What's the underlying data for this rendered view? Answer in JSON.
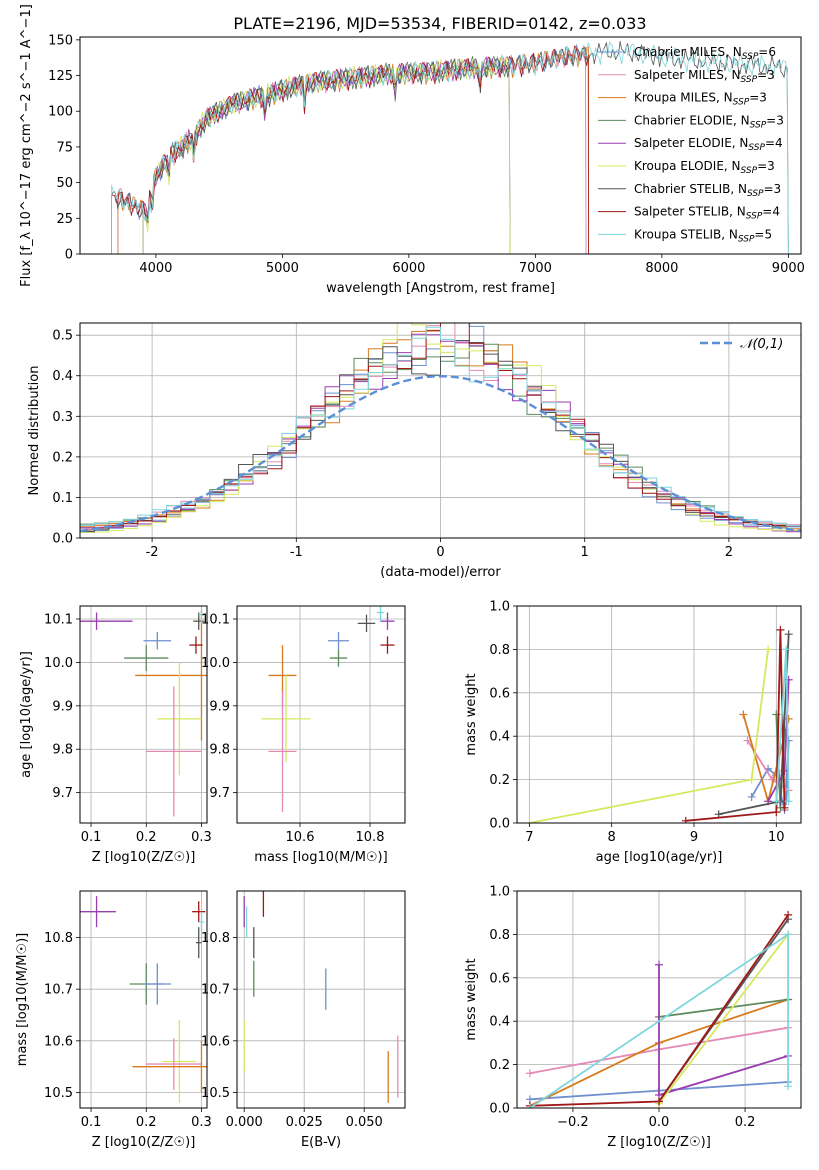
{
  "figure": {
    "title": "PLATE=2196, MJD=53534, FIBERID=0142, z=0.033"
  },
  "palette": {
    "Chabrier MILES": "#6f8fcf",
    "Salpeter MILES": "#e48ab4",
    "Kroupa MILES": "#d97a1e",
    "Chabrier ELODIE": "#5d8a5d",
    "Salpeter ELODIE": "#9a3db0",
    "Kroupa ELODIE": "#d6e85e",
    "Chabrier STELIB": "#555555",
    "Salpeter STELIB": "#a01818",
    "Kroupa STELIB": "#7fd6dc"
  },
  "chart_data": [
    {
      "id": "spectrum",
      "type": "line",
      "title": "PLATE=2196, MJD=53534, FIBERID=0142, z=0.033",
      "xlabel": "wavelength [Angstrom, rest frame]",
      "ylabel": "Flux [f_λ 10^−17 erg cm^−2 s^−1 A^−1]",
      "xlim": [
        3400,
        9100
      ],
      "ylim": [
        0,
        152
      ],
      "xticks": [
        4000,
        5000,
        6000,
        7000,
        8000,
        9000
      ],
      "yticks": [
        0,
        25,
        50,
        75,
        100,
        125,
        150
      ],
      "grid": false,
      "legend_position": "upper-right",
      "series": [
        {
          "name": "Chabrier MILES",
          "nssp": "6"
        },
        {
          "name": "Salpeter MILES",
          "nssp": "3"
        },
        {
          "name": "Kroupa MILES",
          "nssp": "3"
        },
        {
          "name": "Chabrier ELODIE",
          "nssp": "3"
        },
        {
          "name": "Salpeter ELODIE",
          "nssp": "4"
        },
        {
          "name": "Kroupa ELODIE",
          "nssp": "3"
        },
        {
          "name": "Chabrier STELIB",
          "nssp": "3"
        },
        {
          "name": "Salpeter STELIB",
          "nssp": "4"
        },
        {
          "name": "Kroupa STELIB",
          "nssp": "5"
        }
      ],
      "continuum": [
        [
          3650,
          42
        ],
        [
          3800,
          35
        ],
        [
          3920,
          30
        ],
        [
          4000,
          55
        ],
        [
          4100,
          68
        ],
        [
          4200,
          75
        ],
        [
          4300,
          82
        ],
        [
          4400,
          95
        ],
        [
          4500,
          100
        ],
        [
          4600,
          105
        ],
        [
          4700,
          108
        ],
        [
          4800,
          110
        ],
        [
          4900,
          112
        ],
        [
          5000,
          115
        ],
        [
          5200,
          120
        ],
        [
          5400,
          122
        ],
        [
          5600,
          124
        ],
        [
          5800,
          126
        ],
        [
          6000,
          127
        ],
        [
          6200,
          128
        ],
        [
          6400,
          130
        ],
        [
          6600,
          131
        ],
        [
          6800,
          132
        ],
        [
          7000,
          134
        ],
        [
          7200,
          138
        ],
        [
          7400,
          140
        ],
        [
          7600,
          142
        ],
        [
          7800,
          141
        ],
        [
          8000,
          138
        ],
        [
          8200,
          136
        ],
        [
          8400,
          135
        ],
        [
          8600,
          133
        ],
        [
          8800,
          132
        ],
        [
          9000,
          130
        ]
      ],
      "absorption_lines": [
        3934,
        3969,
        4101,
        4300,
        4861,
        5175,
        5890,
        6563
      ],
      "wavelength_coverage": {
        "Chabrier MILES": [
          3700,
          7400
        ],
        "Salpeter MILES": [
          3700,
          7400
        ],
        "Kroupa MILES": [
          3700,
          7420
        ],
        "Chabrier ELODIE": [
          3900,
          6800
        ],
        "Salpeter ELODIE": [
          3900,
          6800
        ],
        "Kroupa ELODIE": [
          3900,
          6800
        ],
        "Chabrier STELIB": [
          3650,
          9000
        ],
        "Salpeter STELIB": [
          3650,
          7420
        ],
        "Kroupa STELIB": [
          3650,
          9000
        ]
      }
    },
    {
      "id": "residuals",
      "type": "histogram",
      "xlabel": "(data-model)/error",
      "ylabel": "Normed distribution",
      "xlim": [
        -2.5,
        2.5
      ],
      "ylim": [
        0,
        0.53
      ],
      "xticks": [
        -2,
        -1,
        0,
        1,
        2
      ],
      "yticks": [
        0.0,
        0.1,
        0.2,
        0.3,
        0.4,
        0.5
      ],
      "grid": true,
      "legend": "𝒩(0,1)",
      "legend_position": "upper-right",
      "bin_width": 0.1,
      "reference_curve": {
        "name": "𝒩(0,1)",
        "mu": 0,
        "sigma": 1,
        "style": "dashed",
        "color": "#5b8fd6"
      }
    },
    {
      "id": "age_vs_Z",
      "type": "scatter",
      "xlabel": "Z [log10(Z/Z☉)]",
      "ylabel": "age  [log10(age/yr)]",
      "xlim": [
        0.08,
        0.31
      ],
      "ylim": [
        9.63,
        10.13
      ],
      "xticks": [
        0.1,
        0.2,
        0.3
      ],
      "yticks": [
        9.7,
        9.8,
        9.9,
        10.0,
        10.1
      ],
      "grid": true,
      "points": [
        {
          "series": "Salpeter ELODIE",
          "x": 0.11,
          "y": 10.095,
          "xerr": 0.065,
          "yerr": 0.02
        },
        {
          "series": "Chabrier MILES",
          "x": 0.22,
          "y": 10.05,
          "xerr": 0.025,
          "yerr": 0.02
        },
        {
          "series": "Chabrier ELODIE",
          "x": 0.2,
          "y": 10.01,
          "xerr": 0.04,
          "yerr": 0.03
        },
        {
          "series": "Kroupa MILES",
          "x": 0.3,
          "y": 9.97,
          "xerr": 0.12,
          "yerr": 0.15
        },
        {
          "series": "Kroupa ELODIE",
          "x": 0.26,
          "y": 9.87,
          "xerr": 0.04,
          "yerr": 0.13
        },
        {
          "series": "Salpeter MILES",
          "x": 0.25,
          "y": 9.795,
          "xerr": 0.05,
          "yerr": 0.15
        },
        {
          "series": "Chabrier STELIB",
          "x": 0.295,
          "y": 10.095,
          "xerr": 0.01,
          "yerr": 0.02
        },
        {
          "series": "Salpeter STELIB",
          "x": 0.29,
          "y": 10.04,
          "xerr": 0.012,
          "yerr": 0.02
        },
        {
          "series": "Kroupa STELIB",
          "x": 0.3,
          "y": 10.11,
          "xerr": 0.005,
          "yerr": 0.02
        }
      ]
    },
    {
      "id": "age_vs_mass",
      "type": "scatter",
      "xlabel": "mass [log10(M/M☉)]",
      "ylabel": "",
      "xlim": [
        10.42,
        10.9
      ],
      "ylim": [
        9.63,
        10.13
      ],
      "xticks": [
        10.6,
        10.8
      ],
      "yticks": [
        9.7,
        9.8,
        9.9,
        10.0,
        10.1
      ],
      "grid": true,
      "points": [
        {
          "series": "Chabrier MILES",
          "x": 10.71,
          "y": 10.05,
          "xerr": 0.03,
          "yerr": 0.02
        },
        {
          "series": "Chabrier ELODIE",
          "x": 10.71,
          "y": 10.01,
          "xerr": 0.025,
          "yerr": 0.02
        },
        {
          "series": "Kroupa MILES",
          "x": 10.55,
          "y": 9.97,
          "xerr": 0.04,
          "yerr": 0.07
        },
        {
          "series": "Kroupa ELODIE",
          "x": 10.56,
          "y": 9.87,
          "xerr": 0.07,
          "yerr": 0.1
        },
        {
          "series": "Salpeter MILES",
          "x": 10.55,
          "y": 9.795,
          "xerr": 0.04,
          "yerr": 0.14
        },
        {
          "series": "Chabrier STELIB",
          "x": 10.79,
          "y": 10.09,
          "xerr": 0.025,
          "yerr": 0.02
        },
        {
          "series": "Salpeter ELODIE",
          "x": 10.85,
          "y": 10.095,
          "xerr": 0.02,
          "yerr": 0.02
        },
        {
          "series": "Salpeter STELIB",
          "x": 10.85,
          "y": 10.04,
          "xerr": 0.02,
          "yerr": 0.02
        },
        {
          "series": "Kroupa STELIB",
          "x": 10.83,
          "y": 10.115,
          "xerr": 0.01,
          "yerr": 0.02
        }
      ]
    },
    {
      "id": "weight_vs_age",
      "type": "line",
      "xlabel": "age  [log10(age/yr)]",
      "ylabel": "mass weight",
      "xlim": [
        6.85,
        10.3
      ],
      "ylim": [
        0,
        1
      ],
      "xticks": [
        7,
        8,
        9,
        10
      ],
      "yticks": [
        0.0,
        0.2,
        0.4,
        0.6,
        0.8,
        1.0
      ],
      "grid": true,
      "series": [
        {
          "name": "Chabrier MILES",
          "points": [
            [
              9.7,
              0.12
            ],
            [
              9.9,
              0.25
            ],
            [
              10.0,
              0.22
            ],
            [
              10.1,
              0.06
            ],
            [
              10.15,
              0.38
            ],
            [
              10.12,
              0.1
            ]
          ]
        },
        {
          "name": "Salpeter MILES",
          "points": [
            [
              9.65,
              0.38
            ],
            [
              9.95,
              0.2
            ],
            [
              10.15,
              0.15
            ]
          ]
        },
        {
          "name": "Kroupa MILES",
          "points": [
            [
              9.6,
              0.5
            ],
            [
              9.9,
              0.1
            ],
            [
              10.15,
              0.48
            ]
          ]
        },
        {
          "name": "Chabrier ELODIE",
          "points": [
            [
              10.0,
              0.5
            ],
            [
              10.05,
              0.07
            ],
            [
              10.1,
              0.43
            ]
          ]
        },
        {
          "name": "Salpeter ELODIE",
          "points": [
            [
              9.9,
              0.1
            ],
            [
              10.1,
              0.24
            ],
            [
              10.15,
              0.66
            ]
          ]
        },
        {
          "name": "Kroupa ELODIE",
          "points": [
            [
              7.0,
              0.0
            ],
            [
              9.7,
              0.2
            ],
            [
              9.9,
              0.8
            ]
          ]
        },
        {
          "name": "Chabrier STELIB",
          "points": [
            [
              9.3,
              0.04
            ],
            [
              10.05,
              0.1
            ],
            [
              10.15,
              0.87
            ]
          ]
        },
        {
          "name": "Salpeter STELIB",
          "points": [
            [
              8.9,
              0.01
            ],
            [
              10.0,
              0.05
            ],
            [
              10.05,
              0.89
            ],
            [
              10.1,
              0.07
            ]
          ]
        },
        {
          "name": "Kroupa STELIB",
          "points": [
            [
              10.0,
              0.1
            ],
            [
              10.12,
              0.8
            ],
            [
              10.15,
              0.1
            ]
          ]
        }
      ]
    },
    {
      "id": "mass_vs_Z",
      "type": "scatter",
      "xlabel": "Z [log10(Z/Z☉)]",
      "ylabel": "mass [log10(M/M☉)]",
      "xlim": [
        0.08,
        0.31
      ],
      "ylim": [
        10.47,
        10.89
      ],
      "xticks": [
        0.1,
        0.2,
        0.3
      ],
      "yticks": [
        10.5,
        10.6,
        10.7,
        10.8
      ],
      "grid": true,
      "points": [
        {
          "series": "Salpeter ELODIE",
          "x": 0.11,
          "y": 10.85,
          "xerr": 0.035,
          "yerr": 0.03
        },
        {
          "series": "Salpeter STELIB",
          "x": 0.295,
          "y": 10.85,
          "xerr": 0.012,
          "yerr": 0.02
        },
        {
          "series": "Kroupa STELIB",
          "x": 0.3,
          "y": 10.83,
          "xerr": 0.005,
          "yerr": 0.02
        },
        {
          "series": "Chabrier STELIB",
          "x": 0.295,
          "y": 10.79,
          "xerr": 0.005,
          "yerr": 0.03
        },
        {
          "series": "Chabrier ELODIE",
          "x": 0.2,
          "y": 10.71,
          "xerr": 0.03,
          "yerr": 0.04
        },
        {
          "series": "Chabrier MILES",
          "x": 0.22,
          "y": 10.71,
          "xerr": 0.025,
          "yerr": 0.04
        },
        {
          "series": "Kroupa ELODIE",
          "x": 0.26,
          "y": 10.56,
          "xerr": 0.03,
          "yerr": 0.08
        },
        {
          "series": "Salpeter MILES",
          "x": 0.25,
          "y": 10.555,
          "xerr": 0.05,
          "yerr": 0.05
        },
        {
          "series": "Kroupa MILES",
          "x": 0.3,
          "y": 10.55,
          "xerr": 0.125,
          "yerr": 0.05
        }
      ]
    },
    {
      "id": "mass_vs_EBV",
      "type": "scatter",
      "xlabel": "E(B-V)",
      "ylabel": "",
      "xlim": [
        -0.003,
        0.067
      ],
      "ylim": [
        10.47,
        10.89
      ],
      "xticks": [
        0.0,
        0.025,
        0.05
      ],
      "yticks": [
        10.5,
        10.6,
        10.7,
        10.8
      ],
      "grid": true,
      "points": [
        {
          "series": "Salpeter ELODIE",
          "x": 0.0,
          "y": 10.85,
          "yerr": 0.03
        },
        {
          "series": "Salpeter STELIB",
          "x": 0.008,
          "y": 10.87,
          "yerr": 0.03
        },
        {
          "series": "Kroupa STELIB",
          "x": 0.001,
          "y": 10.83,
          "yerr": 0.03
        },
        {
          "series": "Chabrier STELIB",
          "x": 0.004,
          "y": 10.79,
          "yerr": 0.03
        },
        {
          "series": "Chabrier ELODIE",
          "x": 0.004,
          "y": 10.72,
          "yerr": 0.035
        },
        {
          "series": "Chabrier MILES",
          "x": 0.034,
          "y": 10.7,
          "yerr": 0.04
        },
        {
          "series": "Kroupa ELODIE",
          "x": 0.0,
          "y": 10.59,
          "yerr": 0.05
        },
        {
          "series": "Salpeter MILES",
          "x": 0.064,
          "y": 10.55,
          "yerr": 0.06
        },
        {
          "series": "Kroupa MILES",
          "x": 0.06,
          "y": 10.53,
          "yerr": 0.05
        }
      ]
    },
    {
      "id": "weight_vs_Z",
      "type": "line",
      "xlabel": "Z [log10(Z/Z☉)]",
      "ylabel": "mass weight",
      "xlim": [
        -0.33,
        0.33
      ],
      "ylim": [
        0,
        1
      ],
      "xticks": [
        -0.2,
        0.0,
        0.2
      ],
      "yticks": [
        0.0,
        0.2,
        0.4,
        0.6,
        0.8,
        1.0
      ],
      "grid": true,
      "series": [
        {
          "name": "Chabrier MILES",
          "points": [
            [
              -0.3,
              0.04
            ],
            [
              0.0,
              0.08
            ],
            [
              0.3,
              0.12
            ]
          ]
        },
        {
          "name": "Salpeter MILES",
          "points": [
            [
              -0.3,
              0.16
            ],
            [
              0.0,
              0.27
            ],
            [
              0.3,
              0.37
            ]
          ]
        },
        {
          "name": "Kroupa MILES",
          "points": [
            [
              -0.3,
              0.01
            ],
            [
              0.0,
              0.3
            ],
            [
              0.3,
              0.5
            ]
          ]
        },
        {
          "name": "Chabrier ELODIE",
          "points": [
            [
              0.0,
              0.42
            ],
            [
              0.3,
              0.5
            ]
          ]
        },
        {
          "name": "Salpeter ELODIE",
          "points": [
            [
              0.0,
              0.66
            ],
            [
              0.0,
              0.06
            ],
            [
              0.3,
              0.24
            ]
          ]
        },
        {
          "name": "Kroupa ELODIE",
          "points": [
            [
              0.0,
              0.02
            ],
            [
              0.3,
              0.8
            ]
          ]
        },
        {
          "name": "Chabrier STELIB",
          "points": [
            [
              0.0,
              0.03
            ],
            [
              0.3,
              0.87
            ]
          ]
        },
        {
          "name": "Salpeter STELIB",
          "points": [
            [
              -0.3,
              0.01
            ],
            [
              0.0,
              0.03
            ],
            [
              0.3,
              0.89
            ]
          ]
        },
        {
          "name": "Kroupa STELIB",
          "points": [
            [
              -0.3,
              0.0
            ],
            [
              0.3,
              0.8
            ],
            [
              0.3,
              0.1
            ]
          ]
        }
      ]
    }
  ]
}
